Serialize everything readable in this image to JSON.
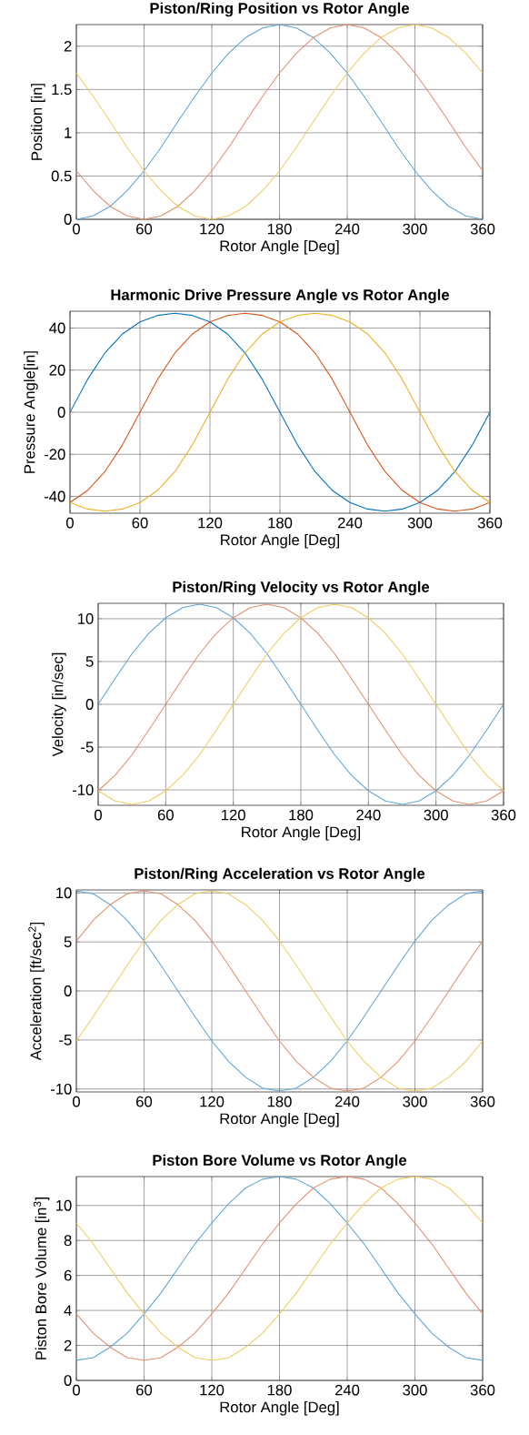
{
  "chart_data": [
    {
      "type": "line",
      "title": "Piston/Ring Position vs Rotor Angle",
      "xlabel": "Rotor Angle [Deg]",
      "ylabel": "Position [in]",
      "x": [
        0,
        15,
        30,
        45,
        60,
        75,
        90,
        105,
        120,
        135,
        150,
        165,
        180,
        195,
        210,
        225,
        240,
        255,
        270,
        285,
        300,
        315,
        330,
        345,
        360
      ],
      "xlim": [
        0,
        360
      ],
      "xticks": [
        0,
        60,
        120,
        180,
        240,
        300,
        360
      ],
      "ylim": [
        0,
        2.25
      ],
      "yticks": [
        0,
        0.5,
        1,
        1.5,
        2
      ],
      "grid": true,
      "series": [
        {
          "color": "#5ea6d6",
          "values": [
            0,
            0.04,
            0.15,
            0.33,
            0.56,
            0.83,
            1.13,
            1.42,
            1.69,
            1.92,
            2.1,
            2.21,
            2.25,
            2.21,
            2.1,
            1.92,
            1.69,
            1.42,
            1.13,
            0.83,
            0.56,
            0.33,
            0.15,
            0.04,
            0
          ]
        },
        {
          "color": "#e0906f",
          "values": [
            0.56,
            0.33,
            0.15,
            0.04,
            0,
            0.04,
            0.15,
            0.33,
            0.56,
            0.83,
            1.13,
            1.42,
            1.69,
            1.92,
            2.1,
            2.21,
            2.25,
            2.21,
            2.1,
            1.92,
            1.69,
            1.42,
            1.13,
            0.83,
            0.56
          ]
        },
        {
          "color": "#efcd62",
          "values": [
            1.69,
            1.42,
            1.13,
            0.83,
            0.56,
            0.33,
            0.15,
            0.04,
            0,
            0.04,
            0.15,
            0.33,
            0.56,
            0.83,
            1.13,
            1.42,
            1.69,
            1.92,
            2.1,
            2.21,
            2.25,
            2.21,
            2.1,
            1.92,
            1.69
          ]
        }
      ]
    },
    {
      "type": "line",
      "title": "Harmonic Drive Pressure Angle vs Rotor Angle",
      "xlabel": "Rotor Angle [Deg]",
      "ylabel": "Pressure Angle[in]",
      "x": [
        0,
        15,
        30,
        45,
        60,
        75,
        90,
        105,
        120,
        135,
        150,
        165,
        180,
        195,
        210,
        225,
        240,
        255,
        270,
        285,
        300,
        315,
        330,
        345,
        360
      ],
      "xlim": [
        0,
        360
      ],
      "xticks": [
        0,
        60,
        120,
        180,
        240,
        300,
        360
      ],
      "ylim": [
        -48,
        48
      ],
      "yticks": [
        -40,
        -20,
        0,
        20,
        40
      ],
      "grid": true,
      "series": [
        {
          "color": "#0072bd",
          "values": [
            0,
            15.5,
            28.2,
            37.2,
            42.9,
            46.0,
            47,
            46.0,
            42.9,
            37.2,
            28.2,
            15.5,
            0,
            -15.5,
            -28.2,
            -37.2,
            -42.9,
            -46.0,
            -47,
            -46.0,
            -42.9,
            -37.2,
            -28.2,
            -15.5,
            0
          ]
        },
        {
          "color": "#d95319",
          "values": [
            -42.9,
            -37.2,
            -28.2,
            -15.5,
            0,
            15.5,
            28.2,
            37.2,
            42.9,
            46.0,
            47,
            46.0,
            42.9,
            37.2,
            28.2,
            15.5,
            0,
            -15.5,
            -28.2,
            -37.2,
            -42.9,
            -46.0,
            -47,
            -46.0,
            -42.9
          ]
        },
        {
          "color": "#edb120",
          "values": [
            -42.9,
            -46.0,
            -47,
            -46.0,
            -42.9,
            -37.2,
            -28.2,
            -15.5,
            0,
            15.5,
            28.2,
            37.2,
            42.9,
            46.0,
            47,
            46.0,
            42.9,
            37.2,
            28.2,
            15.5,
            0,
            -15.5,
            -28.2,
            -37.2,
            -42.9
          ]
        }
      ]
    },
    {
      "type": "line",
      "title": "Piston/Ring Velocity vs Rotor Angle",
      "xlabel": "Rotor Angle [Deg]",
      "ylabel": "Velocity [in/sec]",
      "x": [
        0,
        15,
        30,
        45,
        60,
        75,
        90,
        105,
        120,
        135,
        150,
        165,
        180,
        195,
        210,
        225,
        240,
        255,
        270,
        285,
        300,
        315,
        330,
        345,
        360
      ],
      "xlim": [
        0,
        360
      ],
      "xticks": [
        0,
        60,
        120,
        180,
        240,
        300,
        360
      ],
      "ylim": [
        -11.8,
        11.8
      ],
      "yticks": [
        -10,
        -5,
        0,
        5,
        10
      ],
      "grid": true,
      "series": [
        {
          "color": "#5ea6d6",
          "values": [
            0,
            3.0,
            5.9,
            8.3,
            10.1,
            11.3,
            11.7,
            11.3,
            10.1,
            8.3,
            5.9,
            3.0,
            0,
            -3.0,
            -5.9,
            -8.3,
            -10.1,
            -11.3,
            -11.7,
            -11.3,
            -10.1,
            -8.3,
            -5.9,
            -3.0,
            0
          ]
        },
        {
          "color": "#e0906f",
          "values": [
            -10.1,
            -8.3,
            -5.9,
            -3.0,
            0,
            3.0,
            5.9,
            8.3,
            10.1,
            11.3,
            11.7,
            11.3,
            10.1,
            8.3,
            5.9,
            3.0,
            0,
            -3.0,
            -5.9,
            -8.3,
            -10.1,
            -11.3,
            -11.7,
            -11.3,
            -10.1
          ]
        },
        {
          "color": "#efcd62",
          "values": [
            -10.1,
            -11.3,
            -11.7,
            -11.3,
            -10.1,
            -8.3,
            -5.9,
            -3.0,
            0,
            3.0,
            5.9,
            8.3,
            10.1,
            11.3,
            11.7,
            11.3,
            10.1,
            8.3,
            5.9,
            3.0,
            0,
            -3.0,
            -5.9,
            -8.3,
            -10.1
          ]
        }
      ]
    },
    {
      "type": "line",
      "title": "Piston/Ring Acceleration vs Rotor Angle",
      "xlabel": "Rotor Angle [Deg]",
      "ylabel": "Acceleration [ft/sec$^{2}$]",
      "x": [
        0,
        15,
        30,
        45,
        60,
        75,
        90,
        105,
        120,
        135,
        150,
        165,
        180,
        195,
        210,
        225,
        240,
        255,
        270,
        285,
        300,
        315,
        330,
        345,
        360
      ],
      "xlim": [
        0,
        360
      ],
      "xticks": [
        0,
        60,
        120,
        180,
        240,
        300,
        360
      ],
      "ylim": [
        -10.3,
        10.3
      ],
      "yticks": [
        -10,
        -5,
        0,
        5,
        10
      ],
      "grid": true,
      "series": [
        {
          "color": "#5ea6d6",
          "values": [
            10.2,
            9.9,
            8.8,
            7.2,
            5.1,
            2.6,
            0,
            -2.6,
            -5.1,
            -7.2,
            -8.8,
            -9.9,
            -10.2,
            -9.9,
            -8.8,
            -7.2,
            -5.1,
            -2.6,
            0,
            2.6,
            5.1,
            7.2,
            8.8,
            9.9,
            10.2
          ]
        },
        {
          "color": "#e0906f",
          "values": [
            5.1,
            7.2,
            8.8,
            9.9,
            10.2,
            9.9,
            8.8,
            7.2,
            5.1,
            2.6,
            0,
            -2.6,
            -5.1,
            -7.2,
            -8.8,
            -9.9,
            -10.2,
            -9.9,
            -8.8,
            -7.2,
            -5.1,
            -2.6,
            0,
            2.6,
            5.1
          ]
        },
        {
          "color": "#efcd62",
          "values": [
            -5.1,
            -2.6,
            0,
            2.6,
            5.1,
            7.2,
            8.8,
            9.9,
            10.2,
            9.9,
            8.8,
            7.2,
            5.1,
            2.6,
            0,
            -2.6,
            -5.1,
            -7.2,
            -8.8,
            -9.9,
            -10.2,
            -9.9,
            -8.8,
            -7.2,
            -5.1
          ]
        }
      ]
    },
    {
      "type": "line",
      "title": "Piston Bore Volume vs Rotor Angle",
      "xlabel": "Rotor Angle [Deg]",
      "ylabel": "Piston Bore Volume [in$^{3}$]",
      "x": [
        0,
        15,
        30,
        45,
        60,
        75,
        90,
        105,
        120,
        135,
        150,
        165,
        180,
        195,
        210,
        225,
        240,
        255,
        270,
        285,
        300,
        315,
        330,
        345,
        360
      ],
      "xlim": [
        0,
        360
      ],
      "xticks": [
        0,
        60,
        120,
        180,
        240,
        300,
        360
      ],
      "ylim": [
        0,
        11.65
      ],
      "yticks": [
        0,
        2,
        4,
        6,
        8,
        10
      ],
      "grid": true,
      "series": [
        {
          "color": "#5ea6d6",
          "values": [
            1.15,
            1.3,
            1.9,
            2.7,
            3.8,
            5.0,
            6.4,
            7.8,
            9.0,
            10.1,
            11.0,
            11.5,
            11.65,
            11.5,
            11.0,
            10.1,
            9.0,
            7.8,
            6.4,
            5.0,
            3.8,
            2.7,
            1.9,
            1.3,
            1.15
          ]
        },
        {
          "color": "#e0906f",
          "values": [
            3.8,
            2.7,
            1.9,
            1.3,
            1.15,
            1.3,
            1.9,
            2.7,
            3.8,
            5.0,
            6.4,
            7.8,
            9.0,
            10.1,
            11.0,
            11.5,
            11.65,
            11.5,
            11.0,
            10.1,
            9.0,
            7.8,
            6.4,
            5.0,
            3.8
          ]
        },
        {
          "color": "#efcd62",
          "values": [
            9.0,
            7.8,
            6.4,
            5.0,
            3.8,
            2.7,
            1.9,
            1.3,
            1.15,
            1.3,
            1.9,
            2.7,
            3.8,
            5.0,
            6.4,
            7.8,
            9.0,
            10.1,
            11.0,
            11.5,
            11.65,
            11.5,
            11.0,
            10.1,
            9.0
          ]
        }
      ]
    }
  ]
}
